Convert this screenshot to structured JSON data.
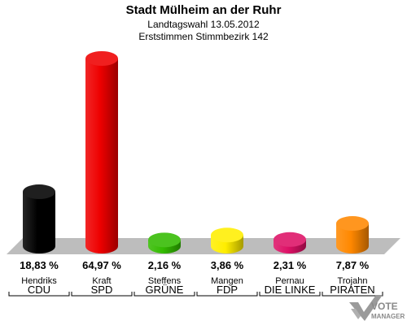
{
  "chart_data": {
    "type": "bar",
    "title": "Stadt Mülheim an der Ruhr",
    "subtitle_1": "Landtagswahl 13.05.2012",
    "subtitle_2": "Erststimmen Stimmbezirk 142",
    "categories": [
      "CDU",
      "SPD",
      "GRÜNE",
      "FDP",
      "DIE LINKE",
      "PIRATEN"
    ],
    "candidates": [
      "Hendriks",
      "Kraft",
      "Steffens",
      "Mangen",
      "Pernau",
      "Trojahn"
    ],
    "values": [
      18.83,
      64.97,
      2.16,
      3.86,
      2.31,
      7.87
    ],
    "value_labels": [
      "18,83 %",
      "64,97 %",
      "2,16 %",
      "3,86 %",
      "2,31 %",
      "7,87 %"
    ],
    "colors": [
      "#000000",
      "#ee0000",
      "#33bb00",
      "#ffee00",
      "#dd1166",
      "#ff8800"
    ],
    "ylim": [
      0,
      70
    ],
    "grid": false,
    "legend": "none"
  },
  "logo": {
    "line1": "VOTE",
    "line2": "MANAGER",
    "icon": "checkmark-icon"
  }
}
